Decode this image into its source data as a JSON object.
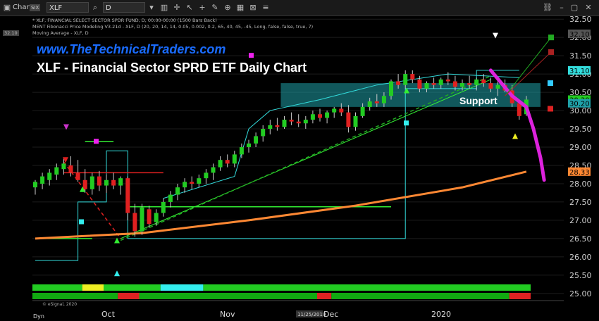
{
  "toolbar": {
    "chart_label": "Chart",
    "chart_badge": "SIX",
    "symbol": "XLF",
    "interval": "D"
  },
  "info_lines": [
    "* XLF, FINANCIAL SELECT SECTOR SPDR FUND, D, 00:00-00:00 (1500 Bars Back)",
    "MENT Fibonacci Price Modeling V3.21d - XLF, D (20, 20, 14, 14, 0.05, 0.002, 0.2, 65, 40, 45, -45, Long, false, false, true, 7)",
    "Moving Average - XLF, D"
  ],
  "title_url": "www.TheTechnicalTraders.com",
  "title_main": "XLF - Financial Sector SPRD ETF Daily Chart",
  "support_label": "Support",
  "copyright": "© eSignal, 2020",
  "date_badge": "11/25/2019",
  "axis_top_left": "32.10",
  "colors": {
    "background": "#000000",
    "up_candle": "#22cc22",
    "down_candle": "#e02020",
    "support_zone": "#1fa0a8",
    "moving_average": "#ff8833",
    "projection": "#dd22dd",
    "channel": "#33dddd"
  },
  "chart_data": {
    "type": "candlestick",
    "x_tick_labels": [
      "Oct",
      "Nov",
      "Dec",
      "2020"
    ],
    "x_axis_corner_label": "Dyn",
    "y_ticks": [
      25.0,
      25.5,
      26.0,
      26.5,
      27.0,
      27.5,
      28.0,
      28.5,
      29.0,
      29.5,
      30.0,
      30.5,
      31.0,
      31.5,
      32.0,
      32.5
    ],
    "ylim": [
      24.9,
      32.6
    ],
    "price_badges": [
      {
        "value": 32.1,
        "label": "32.10",
        "color": "#555555"
      },
      {
        "value": 31.1,
        "label": "31.10",
        "color": "#33dddd"
      },
      {
        "value": 30.3,
        "label": "30.30",
        "color": "#22cc22"
      },
      {
        "value": 30.2,
        "label": "30.20",
        "color": "#1fa0a8"
      },
      {
        "value": 28.33,
        "label": "28.33",
        "color": "#ff8833"
      }
    ],
    "support_zone": [
      30.1,
      30.75
    ],
    "candles": [
      {
        "o": 27.9,
        "h": 28.1,
        "l": 27.7,
        "c": 28.05
      },
      {
        "o": 28.0,
        "h": 28.3,
        "l": 27.85,
        "c": 28.2
      },
      {
        "o": 28.1,
        "h": 28.4,
        "l": 27.95,
        "c": 28.3
      },
      {
        "o": 28.25,
        "h": 28.55,
        "l": 28.1,
        "c": 28.45
      },
      {
        "o": 28.4,
        "h": 28.7,
        "l": 28.25,
        "c": 28.55
      },
      {
        "o": 28.5,
        "h": 28.75,
        "l": 28.2,
        "c": 28.3
      },
      {
        "o": 28.3,
        "h": 28.65,
        "l": 28.05,
        "c": 28.1
      },
      {
        "o": 28.1,
        "h": 28.4,
        "l": 27.75,
        "c": 27.85
      },
      {
        "o": 27.85,
        "h": 28.3,
        "l": 27.7,
        "c": 28.2
      },
      {
        "o": 28.2,
        "h": 28.35,
        "l": 27.8,
        "c": 27.95
      },
      {
        "o": 27.95,
        "h": 28.25,
        "l": 27.75,
        "c": 28.1
      },
      {
        "o": 28.1,
        "h": 28.3,
        "l": 27.85,
        "c": 27.95
      },
      {
        "o": 27.95,
        "h": 28.2,
        "l": 27.7,
        "c": 28.15
      },
      {
        "o": 28.15,
        "h": 28.2,
        "l": 27.0,
        "c": 27.2
      },
      {
        "o": 27.2,
        "h": 27.45,
        "l": 26.55,
        "c": 26.7
      },
      {
        "o": 26.7,
        "h": 27.45,
        "l": 26.6,
        "c": 27.35
      },
      {
        "o": 27.3,
        "h": 27.4,
        "l": 26.8,
        "c": 26.9
      },
      {
        "o": 26.95,
        "h": 27.3,
        "l": 26.85,
        "c": 27.2
      },
      {
        "o": 27.2,
        "h": 27.6,
        "l": 27.1,
        "c": 27.5
      },
      {
        "o": 27.5,
        "h": 27.8,
        "l": 27.35,
        "c": 27.7
      },
      {
        "o": 27.7,
        "h": 28.0,
        "l": 27.55,
        "c": 27.9
      },
      {
        "o": 27.9,
        "h": 28.15,
        "l": 27.75,
        "c": 28.05
      },
      {
        "o": 28.05,
        "h": 28.2,
        "l": 27.85,
        "c": 28.0
      },
      {
        "o": 28.0,
        "h": 28.25,
        "l": 27.9,
        "c": 28.15
      },
      {
        "o": 28.15,
        "h": 28.4,
        "l": 28.0,
        "c": 28.3
      },
      {
        "o": 28.3,
        "h": 28.55,
        "l": 28.1,
        "c": 28.45
      },
      {
        "o": 28.45,
        "h": 28.75,
        "l": 28.35,
        "c": 28.65
      },
      {
        "o": 28.65,
        "h": 28.8,
        "l": 28.45,
        "c": 28.55
      },
      {
        "o": 28.55,
        "h": 28.9,
        "l": 28.45,
        "c": 28.8
      },
      {
        "o": 28.8,
        "h": 29.1,
        "l": 28.7,
        "c": 29.0
      },
      {
        "o": 29.0,
        "h": 29.2,
        "l": 28.85,
        "c": 29.1
      },
      {
        "o": 29.1,
        "h": 29.4,
        "l": 29.0,
        "c": 29.3
      },
      {
        "o": 29.3,
        "h": 29.6,
        "l": 29.15,
        "c": 29.5
      },
      {
        "o": 29.5,
        "h": 29.75,
        "l": 29.35,
        "c": 29.6
      },
      {
        "o": 29.6,
        "h": 29.8,
        "l": 29.45,
        "c": 29.55
      },
      {
        "o": 29.55,
        "h": 29.85,
        "l": 29.5,
        "c": 29.75
      },
      {
        "o": 29.75,
        "h": 29.95,
        "l": 29.6,
        "c": 29.7
      },
      {
        "o": 29.7,
        "h": 29.9,
        "l": 29.55,
        "c": 29.65
      },
      {
        "o": 29.65,
        "h": 29.85,
        "l": 29.5,
        "c": 29.75
      },
      {
        "o": 29.75,
        "h": 30.0,
        "l": 29.65,
        "c": 29.9
      },
      {
        "o": 29.9,
        "h": 30.05,
        "l": 29.7,
        "c": 29.8
      },
      {
        "o": 29.8,
        "h": 30.0,
        "l": 29.65,
        "c": 29.95
      },
      {
        "o": 29.95,
        "h": 30.1,
        "l": 29.8,
        "c": 30.05
      },
      {
        "o": 30.05,
        "h": 30.2,
        "l": 29.85,
        "c": 29.95
      },
      {
        "o": 29.95,
        "h": 30.15,
        "l": 29.4,
        "c": 29.55
      },
      {
        "o": 29.55,
        "h": 29.95,
        "l": 29.45,
        "c": 29.85
      },
      {
        "o": 29.85,
        "h": 30.2,
        "l": 29.8,
        "c": 30.1
      },
      {
        "o": 30.1,
        "h": 30.35,
        "l": 30.0,
        "c": 30.25
      },
      {
        "o": 30.25,
        "h": 30.45,
        "l": 30.1,
        "c": 30.2
      },
      {
        "o": 30.2,
        "h": 30.5,
        "l": 30.1,
        "c": 30.4
      },
      {
        "o": 30.4,
        "h": 30.85,
        "l": 30.3,
        "c": 30.8
      },
      {
        "o": 30.8,
        "h": 31.0,
        "l": 30.6,
        "c": 30.7
      },
      {
        "o": 30.7,
        "h": 31.1,
        "l": 30.6,
        "c": 31.0
      },
      {
        "o": 31.0,
        "h": 31.1,
        "l": 30.75,
        "c": 30.85
      },
      {
        "o": 30.85,
        "h": 30.95,
        "l": 30.5,
        "c": 30.6
      },
      {
        "o": 30.6,
        "h": 30.8,
        "l": 30.5,
        "c": 30.75
      },
      {
        "o": 30.75,
        "h": 30.9,
        "l": 30.6,
        "c": 30.7
      },
      {
        "o": 30.7,
        "h": 30.9,
        "l": 30.6,
        "c": 30.85
      },
      {
        "o": 30.85,
        "h": 31.05,
        "l": 30.7,
        "c": 30.8
      },
      {
        "o": 30.8,
        "h": 30.95,
        "l": 30.55,
        "c": 30.65
      },
      {
        "o": 30.65,
        "h": 30.85,
        "l": 30.55,
        "c": 30.75
      },
      {
        "o": 30.75,
        "h": 30.95,
        "l": 30.6,
        "c": 30.7
      },
      {
        "o": 30.7,
        "h": 30.9,
        "l": 30.55,
        "c": 30.85
      },
      {
        "o": 30.85,
        "h": 31.0,
        "l": 30.65,
        "c": 30.75
      },
      {
        "o": 30.75,
        "h": 30.9,
        "l": 30.5,
        "c": 30.6
      },
      {
        "o": 30.6,
        "h": 30.8,
        "l": 30.4,
        "c": 30.7
      },
      {
        "o": 30.7,
        "h": 30.85,
        "l": 30.5,
        "c": 30.55
      },
      {
        "o": 30.55,
        "h": 30.7,
        "l": 30.1,
        "c": 30.2
      },
      {
        "o": 30.2,
        "h": 30.3,
        "l": 29.75,
        "c": 29.85
      },
      {
        "o": 29.9,
        "h": 30.4,
        "l": 29.85,
        "c": 30.3
      }
    ],
    "moving_average": [
      [
        0,
        26.5
      ],
      [
        15,
        26.65
      ],
      [
        30,
        27.0
      ],
      [
        45,
        27.4
      ],
      [
        60,
        27.9
      ],
      [
        69,
        28.33
      ]
    ],
    "projection_path": [
      [
        64,
        31.1
      ],
      [
        67,
        30.4
      ],
      [
        69,
        30.1
      ],
      [
        70,
        29.5
      ],
      [
        71,
        28.7
      ],
      [
        71.5,
        28.1
      ]
    ],
    "horizontal_levels": [
      {
        "from": 13,
        "to": 50,
        "value": 27.37,
        "color": "#33ee33"
      },
      {
        "from": 4,
        "to": 18,
        "value": 28.3,
        "color": "#e02020"
      },
      {
        "from": 7,
        "to": 11,
        "value": 29.15,
        "color": "#33ee33"
      },
      {
        "from": 0,
        "to": 8,
        "value": 26.5,
        "color": "#33ee33"
      }
    ],
    "status_bars": [
      {
        "segments": [
          [
            "#22cc22",
            0,
            7
          ],
          [
            "#eeee22",
            7,
            10
          ],
          [
            "#22cc22",
            10,
            18
          ],
          [
            "#33eeee",
            18,
            24
          ],
          [
            "#22cc22",
            24,
            60
          ],
          [
            "#22cc22",
            60,
            70
          ]
        ]
      },
      {
        "segments": [
          [
            "#11aa11",
            0,
            12
          ],
          [
            "#dd2222",
            12,
            15
          ],
          [
            "#11aa11",
            15,
            40
          ],
          [
            "#dd2222",
            40,
            42
          ],
          [
            "#11aa11",
            42,
            67
          ],
          [
            "#dd2222",
            67,
            70
          ]
        ]
      }
    ]
  }
}
